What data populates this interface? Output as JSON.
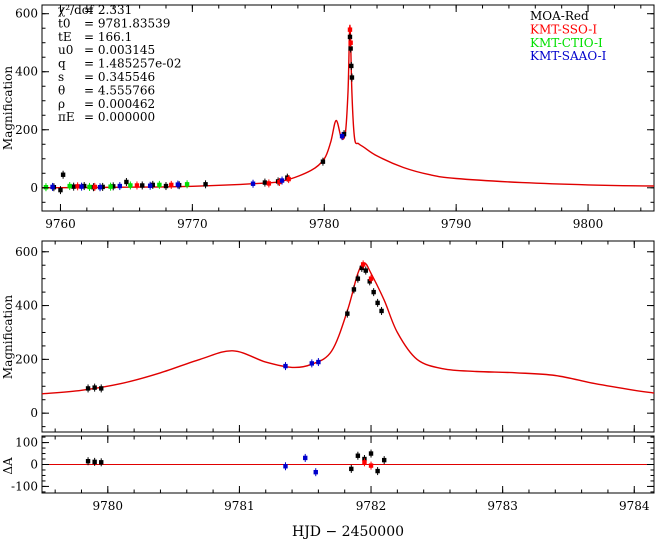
{
  "figure": {
    "xlabel": "HJD − 2450000"
  },
  "params": [
    {
      "name": "χ²/dof",
      "value": "= 2.331"
    },
    {
      "name": "t0",
      "value": "= 9781.83539"
    },
    {
      "name": "tE",
      "value": "= 166.1"
    },
    {
      "name": "u0",
      "value": "= 0.003145"
    },
    {
      "name": "q",
      "value": "= 1.485257e-02"
    },
    {
      "name": "s",
      "value": "= 0.345546"
    },
    {
      "name": "θ",
      "value": "= 4.555766"
    },
    {
      "name": "ρ",
      "value": "= 0.000462"
    },
    {
      "name": "πE",
      "value": "= 0.000000"
    }
  ],
  "legend": [
    {
      "label": "MOA-Red",
      "color": "#000000"
    },
    {
      "label": "KMT-SSO-I",
      "color": "#ff0000"
    },
    {
      "label": "KMT-CTIO-I",
      "color": "#00e000"
    },
    {
      "label": "KMT-SAAO-I",
      "color": "#0000cc"
    }
  ],
  "colors": {
    "model": "#e00000",
    "axis": "#000000"
  },
  "chart_data": [
    {
      "type": "line",
      "panel": "full light curve",
      "ylabel": "Magnification",
      "xlim": [
        9758.6,
        9805
      ],
      "ylim": [
        -80,
        630
      ],
      "xticks": [
        9760,
        9770,
        9780,
        9790,
        9800
      ],
      "yticks": [
        0,
        200,
        400,
        600
      ],
      "model": {
        "x": [
          9758.6,
          9765,
          9770,
          9775,
          9777,
          9779,
          9780,
          9780.5,
          9780.9,
          9781.3,
          9781.6,
          9781.8,
          9781.95,
          9782.1,
          9782.3,
          9782.6,
          9783,
          9784,
          9786,
          9788,
          9790,
          9795,
          9800,
          9805
        ],
        "y": [
          0,
          2,
          5,
          15,
          25,
          60,
          100,
          160,
          232,
          172,
          190,
          330,
          560,
          320,
          170,
          152,
          140,
          110,
          70,
          45,
          32,
          18,
          10,
          6
        ]
      },
      "series": [
        {
          "name": "MOA-Red",
          "color": "#000000",
          "x": [
            9759.5,
            9760,
            9760.2,
            9761,
            9761.8,
            9762.5,
            9763.2,
            9764,
            9765,
            9766.2,
            9767,
            9768,
            9769,
            9771,
            9775.5,
            9776.5,
            9777.2,
            9779.9,
            9781.5,
            9781.95,
            9782.0,
            9782.05,
            9782.1
          ],
          "y": [
            2,
            -8,
            45,
            4,
            6,
            2,
            3,
            5,
            20,
            8,
            10,
            6,
            9,
            12,
            18,
            22,
            35,
            90,
            185,
            520,
            480,
            420,
            380
          ]
        },
        {
          "name": "KMT-SSO-I",
          "color": "#ff0000",
          "x": [
            9761.3,
            9762.6,
            9765.8,
            9768.4,
            9775.8,
            9776.6,
            9777.3,
            9781.95,
            9782.0
          ],
          "y": [
            5,
            3,
            8,
            10,
            15,
            20,
            30,
            545,
            500
          ]
        },
        {
          "name": "KMT-CTIO-I",
          "color": "#00e000",
          "x": [
            9758.9,
            9760.7,
            9762.2,
            9763.8,
            9765.3,
            9767.5,
            9769.6
          ],
          "y": [
            2,
            6,
            3,
            4,
            8,
            10,
            12
          ]
        },
        {
          "name": "KMT-SAAO-I",
          "color": "#0000cc",
          "x": [
            9759.4,
            9761.6,
            9763,
            9764.5,
            9766.8,
            9768.9,
            9774.6,
            9776.8,
            9781.35
          ],
          "y": [
            3,
            4,
            2,
            6,
            7,
            11,
            14,
            25,
            178
          ]
        }
      ]
    },
    {
      "type": "line",
      "panel": "zoom",
      "ylabel": "Magnification",
      "xlim": [
        9779.5,
        9784.15
      ],
      "ylim": [
        -70,
        640
      ],
      "xticks": [
        9780,
        9781,
        9782,
        9783,
        9784
      ],
      "yticks": [
        0,
        200,
        400,
        600
      ],
      "model": {
        "x": [
          9779.5,
          9779.8,
          9780.1,
          9780.4,
          9780.7,
          9780.95,
          9781.2,
          9781.4,
          9781.55,
          9781.7,
          9781.82,
          9781.9,
          9781.95,
          9782.0,
          9782.1,
          9782.2,
          9782.35,
          9782.55,
          9782.8,
          9783.1,
          9783.4,
          9783.7,
          9784.0,
          9784.15
        ],
        "y": [
          72,
          85,
          110,
          150,
          200,
          232,
          190,
          170,
          182,
          230,
          380,
          520,
          558,
          520,
          420,
          300,
          200,
          165,
          155,
          150,
          140,
          110,
          85,
          75
        ]
      },
      "series": [
        {
          "name": "MOA-Red",
          "color": "#000000",
          "x": [
            9779.85,
            9779.9,
            9779.95,
            9781.82,
            9781.87,
            9781.9,
            9781.93,
            9781.96,
            9781.99,
            9782.02,
            9782.05,
            9782.08
          ],
          "y": [
            92,
            95,
            92,
            370,
            460,
            500,
            540,
            530,
            490,
            450,
            410,
            380
          ]
        },
        {
          "name": "KMT-SSO-I",
          "color": "#ff0000",
          "x": [
            9781.94,
            9782.0
          ],
          "y": [
            553,
            500
          ]
        },
        {
          "name": "KMT-SAAO-I",
          "color": "#0000cc",
          "x": [
            9781.35,
            9781.55,
            9781.6
          ],
          "y": [
            175,
            185,
            190
          ]
        }
      ]
    },
    {
      "type": "scatter",
      "panel": "residuals",
      "ylabel": "ΔA",
      "xlim": [
        9779.5,
        9784.15
      ],
      "ylim": [
        -130,
        130
      ],
      "yticks": [
        -100,
        0,
        100
      ],
      "series": [
        {
          "name": "MOA-Red",
          "color": "#000000",
          "x": [
            9779.85,
            9779.9,
            9779.95,
            9781.85,
            9781.9,
            9781.95,
            9782.0,
            9782.05,
            9782.1
          ],
          "y": [
            15,
            12,
            10,
            -20,
            40,
            25,
            50,
            -30,
            20
          ]
        },
        {
          "name": "KMT-SSO-I",
          "color": "#ff0000",
          "x": [
            9781.95,
            9782.0
          ],
          "y": [
            10,
            -5
          ]
        },
        {
          "name": "KMT-SAAO-I",
          "color": "#0000cc",
          "x": [
            9781.35,
            9781.5,
            9781.58
          ],
          "y": [
            -8,
            30,
            -35
          ]
        }
      ]
    }
  ]
}
